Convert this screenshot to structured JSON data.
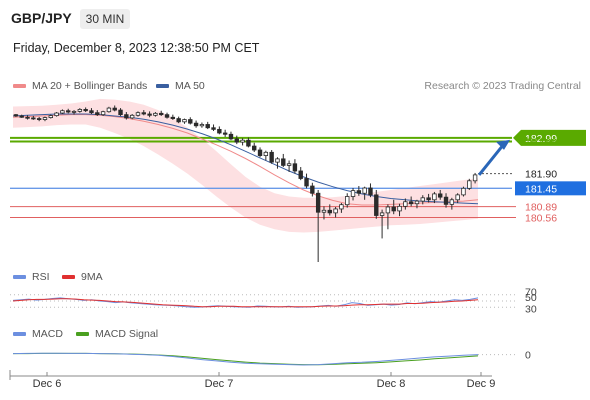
{
  "header": {
    "symbol": "GBP/JPY",
    "timeframe": "30 MIN",
    "timestamp": "Friday, December 8, 2023 12:38:50 PM CET"
  },
  "legend": {
    "ma20": "MA 20 + Bollinger Bands",
    "ma50": "MA 50",
    "credit": "Research © 2023 Trading Central",
    "rsi": "RSI",
    "rsi_ma": "9MA",
    "macd": "MACD",
    "macd_signal": "MACD Signal"
  },
  "colors": {
    "ma20": "#f08a8a",
    "ma50": "#3a5fa0",
    "bollinger_fill": "#fde0e2",
    "candle": "#2b2b2b",
    "pivot_green": "#5aaa00",
    "resistance_red": "#e06060",
    "current_blue": "#1f6fe0",
    "rsi": "#6c8fe0",
    "rsi_ma": "#e03030",
    "macd": "#6c8fe0",
    "macd_signal": "#4aa020"
  },
  "chart_data": {
    "type": "candlestick",
    "x_labels": [
      "Dec 6",
      "Dec 7",
      "Dec 8",
      "Dec 9"
    ],
    "ylim": [
      179.2,
      184.3
    ],
    "price_levels": [
      {
        "value": 182.99,
        "label": "182.99",
        "style": "target"
      },
      {
        "value": 182.88,
        "label": "182.88",
        "style": "pivot"
      },
      {
        "value": 181.9,
        "label": "181.90",
        "style": "last"
      },
      {
        "value": 181.45,
        "label": "181.45",
        "style": "current"
      },
      {
        "value": 180.89,
        "label": "180.89",
        "style": "support"
      },
      {
        "value": 180.56,
        "label": "180.56",
        "style": "support"
      }
    ],
    "candles": [
      [
        183.7,
        183.72,
        183.63,
        183.66
      ],
      [
        183.66,
        183.7,
        183.6,
        183.62
      ],
      [
        183.62,
        183.68,
        183.55,
        183.6
      ],
      [
        183.6,
        183.66,
        183.54,
        183.58
      ],
      [
        183.58,
        183.63,
        183.5,
        183.55
      ],
      [
        183.55,
        183.64,
        183.5,
        183.61
      ],
      [
        183.61,
        183.7,
        183.58,
        183.67
      ],
      [
        183.67,
        183.78,
        183.64,
        183.75
      ],
      [
        183.75,
        183.86,
        183.72,
        183.82
      ],
      [
        183.82,
        183.88,
        183.74,
        183.78
      ],
      [
        183.78,
        183.84,
        183.7,
        183.8
      ],
      [
        183.8,
        183.9,
        183.76,
        183.86
      ],
      [
        183.86,
        183.92,
        183.78,
        183.82
      ],
      [
        183.82,
        183.9,
        183.72,
        183.76
      ],
      [
        183.76,
        183.84,
        183.66,
        183.7
      ],
      [
        183.7,
        183.82,
        183.66,
        183.79
      ],
      [
        183.79,
        183.94,
        183.76,
        183.9
      ],
      [
        183.9,
        183.98,
        183.8,
        183.84
      ],
      [
        183.84,
        183.9,
        183.66,
        183.7
      ],
      [
        183.7,
        183.78,
        183.55,
        183.6
      ],
      [
        183.6,
        183.72,
        183.56,
        183.68
      ],
      [
        183.68,
        183.8,
        183.64,
        183.76
      ],
      [
        183.76,
        183.84,
        183.68,
        183.72
      ],
      [
        183.72,
        183.8,
        183.62,
        183.68
      ],
      [
        183.68,
        183.78,
        183.64,
        183.74
      ],
      [
        183.74,
        183.82,
        183.66,
        183.7
      ],
      [
        183.7,
        183.76,
        183.58,
        183.62
      ],
      [
        183.62,
        183.7,
        183.54,
        183.58
      ],
      [
        183.58,
        183.64,
        183.44,
        183.48
      ],
      [
        183.48,
        183.58,
        183.42,
        183.55
      ],
      [
        183.55,
        183.62,
        183.4,
        183.44
      ],
      [
        183.44,
        183.52,
        183.3,
        183.36
      ],
      [
        183.36,
        183.46,
        183.3,
        183.4
      ],
      [
        183.4,
        183.48,
        183.26,
        183.3
      ],
      [
        183.3,
        183.4,
        183.2,
        183.25
      ],
      [
        183.25,
        183.34,
        183.1,
        183.14
      ],
      [
        183.14,
        183.24,
        183.02,
        183.1
      ],
      [
        183.1,
        183.18,
        182.92,
        182.96
      ],
      [
        182.96,
        183.06,
        182.8,
        182.86
      ],
      [
        182.86,
        182.98,
        182.76,
        182.92
      ],
      [
        182.92,
        183.0,
        182.7,
        182.74
      ],
      [
        182.74,
        182.84,
        182.56,
        182.62
      ],
      [
        182.62,
        182.7,
        182.4,
        182.45
      ],
      [
        182.45,
        182.6,
        182.3,
        182.55
      ],
      [
        182.55,
        182.62,
        182.2,
        182.25
      ],
      [
        182.25,
        182.4,
        182.05,
        182.35
      ],
      [
        182.35,
        182.5,
        182.1,
        182.15
      ],
      [
        182.15,
        182.3,
        181.95,
        182.2
      ],
      [
        182.2,
        182.34,
        181.9,
        181.98
      ],
      [
        181.98,
        182.1,
        181.7,
        181.75
      ],
      [
        181.75,
        181.9,
        181.45,
        181.52
      ],
      [
        181.52,
        181.62,
        181.2,
        181.3
      ],
      [
        181.3,
        181.4,
        179.2,
        180.72
      ],
      [
        180.72,
        180.9,
        180.5,
        180.78
      ],
      [
        180.78,
        180.96,
        180.62,
        180.7
      ],
      [
        180.7,
        180.88,
        180.56,
        180.82
      ],
      [
        180.82,
        181.0,
        180.7,
        180.95
      ],
      [
        180.95,
        181.3,
        180.86,
        181.2
      ],
      [
        181.2,
        181.46,
        181.08,
        181.38
      ],
      [
        181.38,
        181.52,
        181.22,
        181.3
      ],
      [
        181.3,
        181.5,
        181.1,
        181.46
      ],
      [
        181.46,
        181.6,
        181.18,
        181.25
      ],
      [
        181.25,
        181.4,
        180.52,
        180.62
      ],
      [
        180.62,
        180.8,
        179.92,
        180.7
      ],
      [
        180.7,
        180.96,
        180.2,
        180.88
      ],
      [
        180.88,
        181.1,
        180.66,
        180.76
      ],
      [
        180.76,
        180.98,
        180.6,
        180.9
      ],
      [
        180.9,
        181.14,
        180.8,
        181.04
      ],
      [
        181.04,
        181.2,
        180.9,
        180.98
      ],
      [
        180.98,
        181.1,
        180.84,
        181.06
      ],
      [
        181.06,
        181.24,
        180.96,
        181.16
      ],
      [
        181.16,
        181.28,
        181.02,
        181.1
      ],
      [
        181.1,
        181.34,
        181.0,
        181.28
      ],
      [
        181.28,
        181.4,
        181.1,
        181.18
      ],
      [
        181.18,
        181.3,
        180.86,
        180.96
      ],
      [
        180.96,
        181.16,
        180.8,
        181.1
      ],
      [
        181.1,
        181.3,
        181.0,
        181.25
      ],
      [
        181.25,
        181.5,
        181.2,
        181.45
      ],
      [
        181.45,
        181.74,
        181.4,
        181.68
      ],
      [
        181.68,
        181.92,
        181.6,
        181.86
      ]
    ],
    "ma20": [
      183.62,
      183.64,
      183.66,
      183.68,
      183.7,
      183.7,
      183.68,
      183.64,
      183.58,
      183.5,
      183.4,
      183.28,
      183.14,
      182.96,
      182.78,
      182.58,
      182.36,
      182.12,
      181.86,
      181.62,
      181.4,
      181.22,
      181.08,
      180.98,
      180.94,
      180.94,
      180.96,
      180.98,
      181.0,
      181.02,
      181.04,
      181.06,
      181.1
    ],
    "ma50": [
      183.66,
      183.68,
      183.7,
      183.72,
      183.72,
      183.72,
      183.7,
      183.66,
      183.62,
      183.56,
      183.48,
      183.38,
      183.26,
      183.12,
      182.96,
      182.78,
      182.58,
      182.38,
      182.18,
      181.98,
      181.8,
      181.64,
      181.5,
      181.38,
      181.28,
      181.2,
      181.14,
      181.1,
      181.06,
      181.04,
      181.02,
      181.0,
      180.98
    ],
    "bb_upper": [
      183.95,
      183.96,
      183.97,
      184.0,
      184.04,
      184.1,
      184.18,
      184.16,
      184.1,
      184.0,
      183.84,
      183.6,
      183.3,
      182.96,
      182.58,
      182.18,
      181.8,
      181.5,
      181.3,
      181.2,
      181.16,
      181.16,
      181.18,
      181.22,
      181.28,
      181.34,
      181.4,
      181.46,
      181.52,
      181.58,
      181.64,
      181.7,
      181.76
    ],
    "bb_lower": [
      183.3,
      183.32,
      183.34,
      183.38,
      183.4,
      183.4,
      183.3,
      183.14,
      182.96,
      182.74,
      182.48,
      182.2,
      181.9,
      181.56,
      181.2,
      180.86,
      180.56,
      180.34,
      180.2,
      180.12,
      180.1,
      180.12,
      180.16,
      180.2,
      180.24,
      180.28,
      180.32,
      180.34,
      180.36,
      180.4,
      180.44,
      180.48,
      180.52
    ],
    "rsi": {
      "levels": [
        70,
        50,
        30
      ],
      "ylim": [
        15,
        85
      ],
      "rsi": [
        52,
        54,
        56,
        53,
        55,
        58,
        60,
        57,
        55,
        52,
        54,
        50,
        48,
        45,
        47,
        44,
        42,
        40,
        38,
        37,
        36,
        34,
        32,
        30,
        31,
        33,
        35,
        33,
        32,
        31,
        30,
        34,
        33,
        32,
        31,
        33,
        30,
        31,
        32,
        34,
        36,
        33,
        38,
        45,
        42,
        36,
        38,
        40,
        37,
        39,
        44,
        41,
        45,
        48,
        46,
        50,
        54,
        52,
        55,
        60
      ],
      "ma9": [
        50,
        52,
        54,
        55,
        55,
        56,
        57,
        57,
        56,
        54,
        53,
        52,
        50,
        48,
        47,
        46,
        44,
        42,
        40,
        38,
        37,
        36,
        35,
        33,
        32,
        32,
        33,
        33,
        33,
        32,
        32,
        32,
        32,
        32,
        32,
        32,
        32,
        32,
        32,
        33,
        34,
        34,
        35,
        37,
        38,
        38,
        39,
        40,
        40,
        40,
        42,
        42,
        43,
        45,
        46,
        47,
        49,
        50,
        52,
        54
      ]
    },
    "macd": {
      "levels": [
        0
      ],
      "ylim": [
        -0.8,
        0.6
      ],
      "macd": [
        0.05,
        0.06,
        0.07,
        0.07,
        0.06,
        0.06,
        0.05,
        0.04,
        0.02,
        0.0,
        -0.04,
        -0.1,
        -0.18,
        -0.26,
        -0.33,
        -0.4,
        -0.45,
        -0.48,
        -0.5,
        -0.52,
        -0.54,
        -0.52,
        -0.48,
        -0.42,
        -0.4,
        -0.36,
        -0.3,
        -0.24,
        -0.18,
        -0.12,
        -0.08,
        -0.04,
        0.0
      ],
      "signal": [
        0.05,
        0.05,
        0.06,
        0.06,
        0.06,
        0.06,
        0.05,
        0.04,
        0.03,
        0.01,
        -0.02,
        -0.06,
        -0.12,
        -0.19,
        -0.26,
        -0.33,
        -0.39,
        -0.44,
        -0.47,
        -0.5,
        -0.52,
        -0.53,
        -0.51,
        -0.48,
        -0.45,
        -0.42,
        -0.38,
        -0.33,
        -0.28,
        -0.22,
        -0.17,
        -0.12,
        -0.07
      ]
    }
  }
}
